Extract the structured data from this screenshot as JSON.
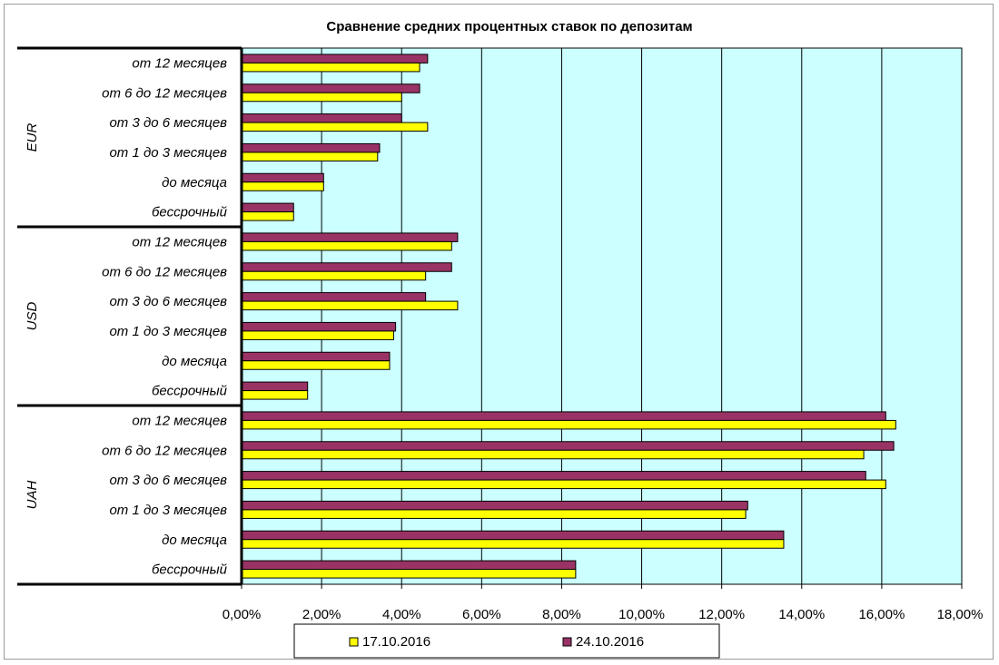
{
  "chart_data": {
    "type": "bar",
    "orientation": "horizontal",
    "title": "Сравнение средних процентных ставок по депозитам",
    "xlim": [
      0,
      18
    ],
    "x_ticks": [
      "0,00%",
      "2,00%",
      "4,00%",
      "6,00%",
      "8,00%",
      "10,00%",
      "12,00%",
      "14,00%",
      "16,00%",
      "18,00%"
    ],
    "grid": "vertical",
    "legend_position": "bottom",
    "groups": [
      "EUR",
      "USD",
      "UAH"
    ],
    "categories": [
      "от 12 месяцев",
      "от 6 до 12 месяцев",
      "от 3 до 6 месяцев",
      "от 1 до 3 месяцев",
      "до месяца",
      "бессрочный"
    ],
    "series": [
      {
        "name": "17.10.2016",
        "color": "#ffff00",
        "values": {
          "EUR": [
            4.45,
            4.0,
            4.65,
            3.4,
            2.05,
            1.3
          ],
          "USD": [
            5.25,
            4.6,
            5.4,
            3.8,
            3.7,
            1.65
          ],
          "UAH": [
            16.35,
            15.55,
            16.1,
            12.6,
            13.55,
            8.35
          ]
        }
      },
      {
        "name": "24.10.2016",
        "color": "#993366",
        "values": {
          "EUR": [
            4.65,
            4.45,
            4.0,
            3.45,
            2.05,
            1.3
          ],
          "USD": [
            5.4,
            5.25,
            4.6,
            3.85,
            3.7,
            1.65
          ],
          "UAH": [
            16.1,
            16.3,
            15.6,
            12.65,
            13.55,
            8.35
          ]
        }
      }
    ]
  }
}
